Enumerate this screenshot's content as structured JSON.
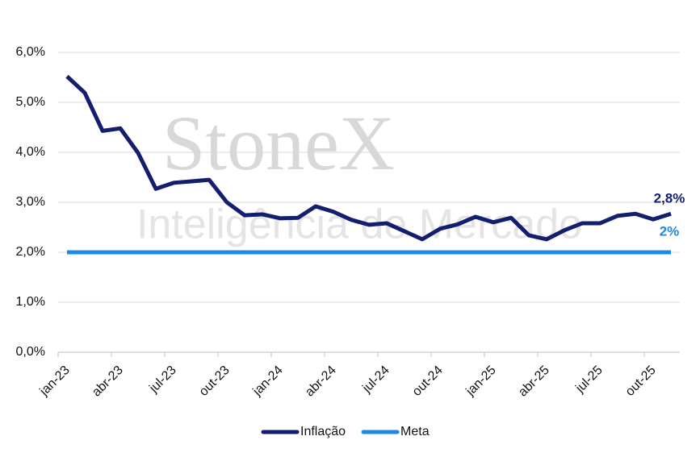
{
  "chart_data": {
    "type": "line",
    "watermark": [
      "StoneX",
      "Inteligência de Mercado"
    ],
    "categories": [
      "jan-23",
      null,
      null,
      "abr-23",
      null,
      null,
      "jul-23",
      null,
      null,
      "out-23",
      null,
      null,
      "jan-24",
      null,
      null,
      "abr-24",
      null,
      null,
      "jul-24",
      null,
      null,
      "out-24",
      null,
      null,
      "jan-25",
      null,
      null,
      "abr-25",
      null,
      null,
      "jul-25",
      null,
      null,
      "out-25",
      null
    ],
    "series": [
      {
        "name": "Inflação",
        "color": "#141e6e",
        "values": [
          5.52,
          5.19,
          4.43,
          4.48,
          3.99,
          3.27,
          3.39,
          3.42,
          3.45,
          3.0,
          2.74,
          2.76,
          2.68,
          2.69,
          2.92,
          2.81,
          2.65,
          2.55,
          2.58,
          2.42,
          2.26,
          2.47,
          2.56,
          2.71,
          2.6,
          2.69,
          2.34,
          2.26,
          2.44,
          2.58,
          2.58,
          2.73,
          2.77,
          2.66,
          2.77
        ],
        "value_labels": [
          null,
          null,
          null,
          null,
          null,
          null,
          null,
          null,
          null,
          null,
          null,
          null,
          null,
          null,
          null,
          null,
          null,
          null,
          null,
          null,
          null,
          null,
          null,
          null,
          null,
          null,
          null,
          null,
          null,
          null,
          null,
          null,
          null,
          null,
          "2,8%"
        ]
      },
      {
        "name": "Meta",
        "color": "#1e88e5",
        "values": [
          2,
          2,
          2,
          2,
          2,
          2,
          2,
          2,
          2,
          2,
          2,
          2,
          2,
          2,
          2,
          2,
          2,
          2,
          2,
          2,
          2,
          2,
          2,
          2,
          2,
          2,
          2,
          2,
          2,
          2,
          2,
          2,
          2,
          2,
          2
        ],
        "value_labels": [
          null,
          null,
          null,
          null,
          null,
          null,
          null,
          null,
          null,
          null,
          null,
          null,
          null,
          null,
          null,
          null,
          null,
          null,
          null,
          null,
          null,
          null,
          null,
          null,
          null,
          null,
          null,
          null,
          null,
          null,
          null,
          null,
          null,
          null,
          "2%"
        ]
      }
    ],
    "ylim": [
      0,
      6
    ],
    "yticks": [
      {
        "value": 0,
        "label": "0,0%"
      },
      {
        "value": 1,
        "label": "1,0%"
      },
      {
        "value": 2,
        "label": "2,0%"
      },
      {
        "value": 3,
        "label": "3,0%"
      },
      {
        "value": 4,
        "label": "4,0%"
      },
      {
        "value": 5,
        "label": "5,0%"
      },
      {
        "value": 6,
        "label": "6,0%"
      }
    ],
    "grid": true,
    "legend": "bottom"
  }
}
